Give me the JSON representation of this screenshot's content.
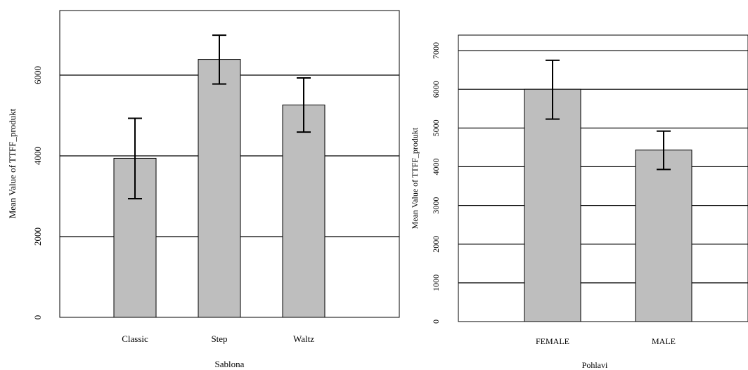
{
  "chart_data": [
    {
      "type": "bar",
      "xlabel": "Sablona",
      "ylabel": "Mean Value of TTFF_produkt",
      "categories": [
        "Classic",
        "Step",
        "Waltz"
      ],
      "values": [
        3940,
        6390,
        5260
      ],
      "error_low": [
        2940,
        5780,
        4590
      ],
      "error_high": [
        4930,
        6990,
        5930
      ],
      "yticks": [
        0,
        2000,
        4000,
        6000
      ],
      "ylim": [
        0,
        7600
      ],
      "grid": true,
      "bar_color": "#bebebe"
    },
    {
      "type": "bar",
      "xlabel": "Pohlavi",
      "ylabel": "Mean Value of TTFF_produkt",
      "categories": [
        "FEMALE",
        "MALE"
      ],
      "values": [
        6000,
        4430
      ],
      "error_low": [
        5230,
        3930
      ],
      "error_high": [
        6750,
        4920
      ],
      "yticks": [
        0,
        1000,
        2000,
        3000,
        4000,
        5000,
        6000,
        7000
      ],
      "ylim": [
        0,
        7400
      ],
      "grid": true,
      "bar_color": "#bebebe"
    }
  ]
}
